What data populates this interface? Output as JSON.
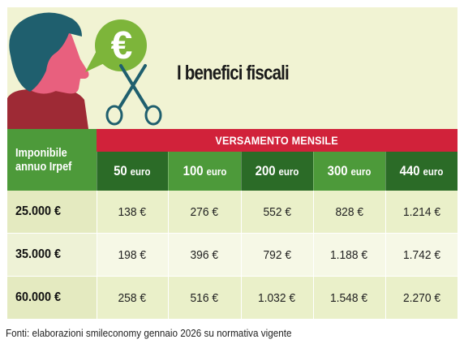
{
  "title": "I benefici fiscali",
  "icons": {
    "person": "person-profile-icon",
    "euro": "euro-icon",
    "scissors": "scissors-icon"
  },
  "colors": {
    "panel_background": "#f1f3d3",
    "group_header": "#d1223a",
    "column_light_green": "#4d9a3a",
    "column_dark_green": "#2b6b27",
    "euro_green": "#7db53a",
    "face_pink": "#e8607e",
    "hair_teal": "#1f5f6e",
    "shirt_maroon": "#9e2a35",
    "scissors_teal": "#1f5f6e"
  },
  "table": {
    "corner_header_line1": "Imponibile",
    "corner_header_line2": "annuo Irpef",
    "group_header": "VERSAMENTO MENSILE",
    "columns": [
      {
        "amount": "50",
        "unit": "euro"
      },
      {
        "amount": "100",
        "unit": "euro"
      },
      {
        "amount": "200",
        "unit": "euro"
      },
      {
        "amount": "300",
        "unit": "euro"
      },
      {
        "amount": "440",
        "unit": "euro"
      }
    ],
    "rows": [
      {
        "income": "25.000 €",
        "values": [
          "138 €",
          "276 €",
          "552 €",
          "828 €",
          "1.214 €"
        ]
      },
      {
        "income": "35.000 €",
        "values": [
          "198 €",
          "396 €",
          "792 €",
          "1.188 €",
          "1.742 €"
        ]
      },
      {
        "income": "60.000 €",
        "values": [
          "258 €",
          "516 €",
          "1.032 €",
          "1.548 €",
          "2.270 €"
        ]
      }
    ]
  },
  "source": "Fonti: elaborazioni smileconomy gennaio 2026 su normativa vigente"
}
